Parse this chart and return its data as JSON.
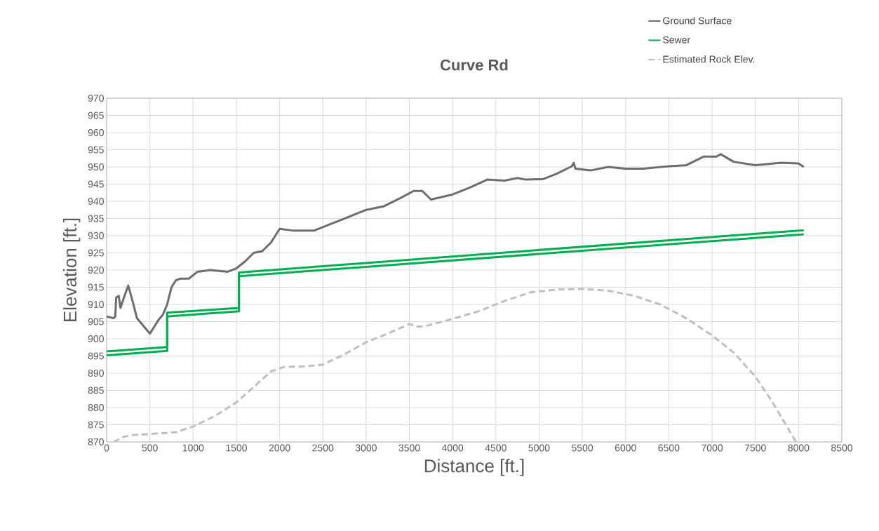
{
  "chart_data": {
    "type": "line",
    "title": "Curve Rd",
    "xlabel": "Distance [ft.]",
    "ylabel": "Elevation [ft.]",
    "xlim": [
      0,
      8500
    ],
    "ylim": [
      870,
      970
    ],
    "xticks": [
      0,
      500,
      1000,
      1500,
      2000,
      2500,
      3000,
      3500,
      4000,
      4500,
      5000,
      5500,
      6000,
      6500,
      7000,
      7500,
      8000,
      8500
    ],
    "yticks": [
      870,
      875,
      880,
      885,
      890,
      895,
      900,
      905,
      910,
      915,
      920,
      925,
      930,
      935,
      940,
      945,
      950,
      955,
      960,
      965,
      970
    ],
    "grid": true,
    "legend": "top right",
    "marker": "none",
    "series": [
      {
        "name": "Ground Surface",
        "color": "#706c6c",
        "line_style": "solid",
        "x": [
          0,
          80,
          100,
          110,
          140,
          160,
          200,
          250,
          300,
          350,
          400,
          450,
          500,
          550,
          600,
          650,
          700,
          750,
          800,
          850,
          950,
          1050,
          1200,
          1400,
          1500,
          1600,
          1700,
          1800,
          1900,
          2000,
          2150,
          2400,
          2600,
          2800,
          3000,
          3200,
          3400,
          3550,
          3650,
          3750,
          4000,
          4200,
          4400,
          4600,
          4750,
          4850,
          5050,
          5200,
          5380,
          5400,
          5420,
          5600,
          5800,
          6000,
          6200,
          6500,
          6700,
          6900,
          7050,
          7100,
          7250,
          7500,
          7800,
          8000,
          8060
        ],
        "values": [
          906.5,
          906,
          906.5,
          912,
          912.5,
          909,
          912,
          915.5,
          911,
          906,
          904.5,
          903,
          901.5,
          903.5,
          905.5,
          907,
          910,
          915,
          917,
          917.5,
          917.5,
          919.5,
          920,
          919.5,
          920.5,
          922.5,
          925,
          925.5,
          928,
          932,
          931.5,
          931.5,
          933.5,
          935.5,
          937.5,
          938.5,
          941,
          943,
          943,
          940.5,
          942,
          944,
          946.3,
          946,
          946.8,
          946.3,
          946.5,
          948,
          950.2,
          951.2,
          949.5,
          949,
          950,
          949.5,
          949.5,
          950.2,
          950.5,
          953,
          953,
          953.7,
          951.5,
          950.5,
          951.2,
          951,
          950
        ]
      },
      {
        "name": "Sewer",
        "color": "#00b050",
        "line_style": "solid",
        "x": [
          0,
          700,
          700,
          1530,
          1530,
          8060
        ],
        "values": [
          896.3,
          897.6,
          907.6,
          909,
          919.3,
          931.6
        ]
      },
      {
        "color": "#00b050",
        "line_style": "solid",
        "x": [
          0,
          700,
          700,
          1530,
          1530,
          8060
        ],
        "values": [
          895.2,
          896.5,
          906.5,
          908,
          918.2,
          930.4
        ]
      },
      {
        "name": "Estimated Rock Elev.",
        "color": "#bfbfbf",
        "line_style": "dashed",
        "x": [
          80,
          200,
          300,
          500,
          800,
          1000,
          1250,
          1500,
          1700,
          1900,
          2050,
          2300,
          2500,
          2750,
          3000,
          3250,
          3500,
          3600,
          3700,
          4000,
          4300,
          4600,
          4900,
          5200,
          5500,
          5800,
          6100,
          6400,
          6700,
          7000,
          7250,
          7500,
          7700,
          7900,
          7970
        ],
        "values": [
          870,
          871.5,
          872,
          872.3,
          872.8,
          874.5,
          877.5,
          881.5,
          886,
          890.5,
          891.8,
          892,
          892.5,
          895.5,
          899,
          901.5,
          904.3,
          903.5,
          903.8,
          905.8,
          908,
          911,
          913.5,
          914.3,
          914.5,
          914,
          912.5,
          910,
          906,
          901,
          896,
          889,
          881.5,
          873,
          870
        ]
      }
    ]
  }
}
